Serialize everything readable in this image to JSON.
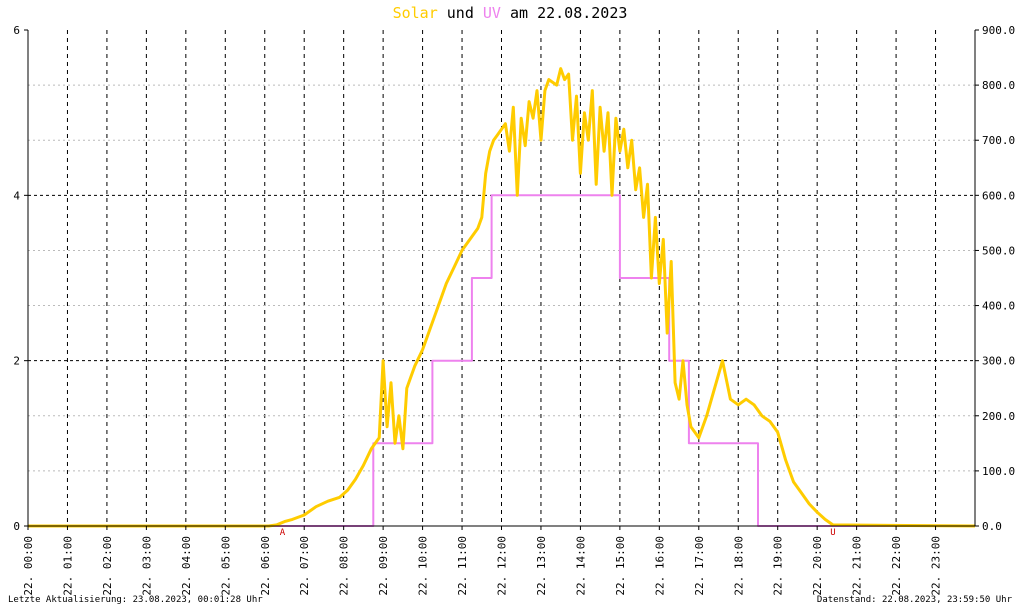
{
  "chart_data": {
    "type": "line",
    "title": {
      "part1": "Solar",
      "part2": " und ",
      "part3": "UV",
      "part4": " am 22.08.2023"
    },
    "colors": {
      "solar": "#ffcc00",
      "uv": "#ee82ee",
      "sun_marker": "#cc0000"
    },
    "x_ticks": [
      "22. 00:00",
      "22. 01:00",
      "22. 02:00",
      "22. 03:00",
      "22. 04:00",
      "22. 05:00",
      "22. 06:00",
      "22. 07:00",
      "22. 08:00",
      "22. 09:00",
      "22. 10:00",
      "22. 11:00",
      "22. 12:00",
      "22. 13:00",
      "22. 14:00",
      "22. 15:00",
      "22. 16:00",
      "22. 17:00",
      "22. 18:00",
      "22. 19:00",
      "22. 20:00",
      "22. 21:00",
      "22. 22:00",
      "22. 23:00"
    ],
    "y_left": {
      "min": 0,
      "max": 6,
      "ticks": [
        "0",
        "2",
        "4",
        "6"
      ]
    },
    "y_right": {
      "min": 0,
      "max": 900,
      "ticks": [
        "0.0",
        "100.0",
        "200.0",
        "300.0",
        "400.0",
        "500.0",
        "600.0",
        "700.0",
        "800.0",
        "900.0"
      ]
    },
    "grid": true,
    "sunrise": {
      "label": "A",
      "hour": 6.45
    },
    "sunset": {
      "label": "U",
      "hour": 20.4
    },
    "series": [
      {
        "name": "Solar",
        "axis": "right",
        "x_hours": [
          0,
          6.1,
          6.3,
          6.5,
          6.7,
          7.0,
          7.3,
          7.6,
          7.9,
          8.1,
          8.3,
          8.5,
          8.7,
          8.9,
          9.0,
          9.1,
          9.2,
          9.3,
          9.4,
          9.5,
          9.6,
          9.8,
          10.0,
          10.2,
          10.4,
          10.6,
          10.8,
          11.0,
          11.2,
          11.4,
          11.5,
          11.6,
          11.7,
          11.8,
          11.9,
          12.0,
          12.1,
          12.2,
          12.3,
          12.4,
          12.5,
          12.6,
          12.7,
          12.8,
          12.9,
          13.0,
          13.1,
          13.2,
          13.4,
          13.5,
          13.6,
          13.7,
          13.8,
          13.9,
          14.0,
          14.1,
          14.2,
          14.3,
          14.4,
          14.5,
          14.6,
          14.7,
          14.8,
          14.9,
          15.0,
          15.1,
          15.2,
          15.3,
          15.4,
          15.5,
          15.6,
          15.7,
          15.8,
          15.9,
          16.0,
          16.1,
          16.2,
          16.3,
          16.4,
          16.5,
          16.6,
          16.7,
          16.8,
          17.0,
          17.2,
          17.4,
          17.6,
          17.8,
          18.0,
          18.2,
          18.4,
          18.6,
          18.8,
          19.0,
          19.2,
          19.4,
          19.6,
          19.8,
          20.0,
          20.2,
          20.4,
          24
        ],
        "values": [
          0,
          0,
          2,
          8,
          12,
          20,
          35,
          45,
          52,
          65,
          85,
          110,
          140,
          160,
          300,
          180,
          260,
          150,
          200,
          140,
          250,
          290,
          320,
          360,
          400,
          440,
          470,
          500,
          520,
          540,
          560,
          640,
          680,
          700,
          710,
          720,
          730,
          680,
          760,
          600,
          740,
          690,
          770,
          740,
          790,
          700,
          790,
          810,
          800,
          830,
          810,
          820,
          700,
          780,
          640,
          750,
          700,
          790,
          620,
          760,
          680,
          750,
          600,
          740,
          680,
          720,
          650,
          700,
          610,
          650,
          560,
          620,
          450,
          560,
          440,
          520,
          350,
          480,
          260,
          230,
          300,
          220,
          180,
          160,
          200,
          250,
          300,
          230,
          220,
          230,
          220,
          200,
          190,
          170,
          120,
          80,
          60,
          40,
          25,
          12,
          2,
          0
        ]
      },
      {
        "name": "UV",
        "axis": "left",
        "x_hours": [
          0,
          8.75,
          8.75,
          9.5,
          9.5,
          10.25,
          10.25,
          11.25,
          11.25,
          11.75,
          11.75,
          14.25,
          14.25,
          15.0,
          15.0,
          16.25,
          16.25,
          16.75,
          16.75,
          17.0,
          17.0,
          18.5,
          18.5,
          24
        ],
        "values": [
          0,
          0,
          1,
          1,
          1,
          1,
          2,
          2,
          3,
          3,
          4,
          4,
          4,
          4,
          3,
          3,
          2,
          2,
          1,
          1,
          1,
          1,
          0,
          0
        ]
      }
    ]
  },
  "footer": {
    "left": "Letzte Aktualisierung: 23.08.2023, 00:01:28 Uhr",
    "right": "Datenstand: 22.08.2023, 23:59:50 Uhr"
  }
}
